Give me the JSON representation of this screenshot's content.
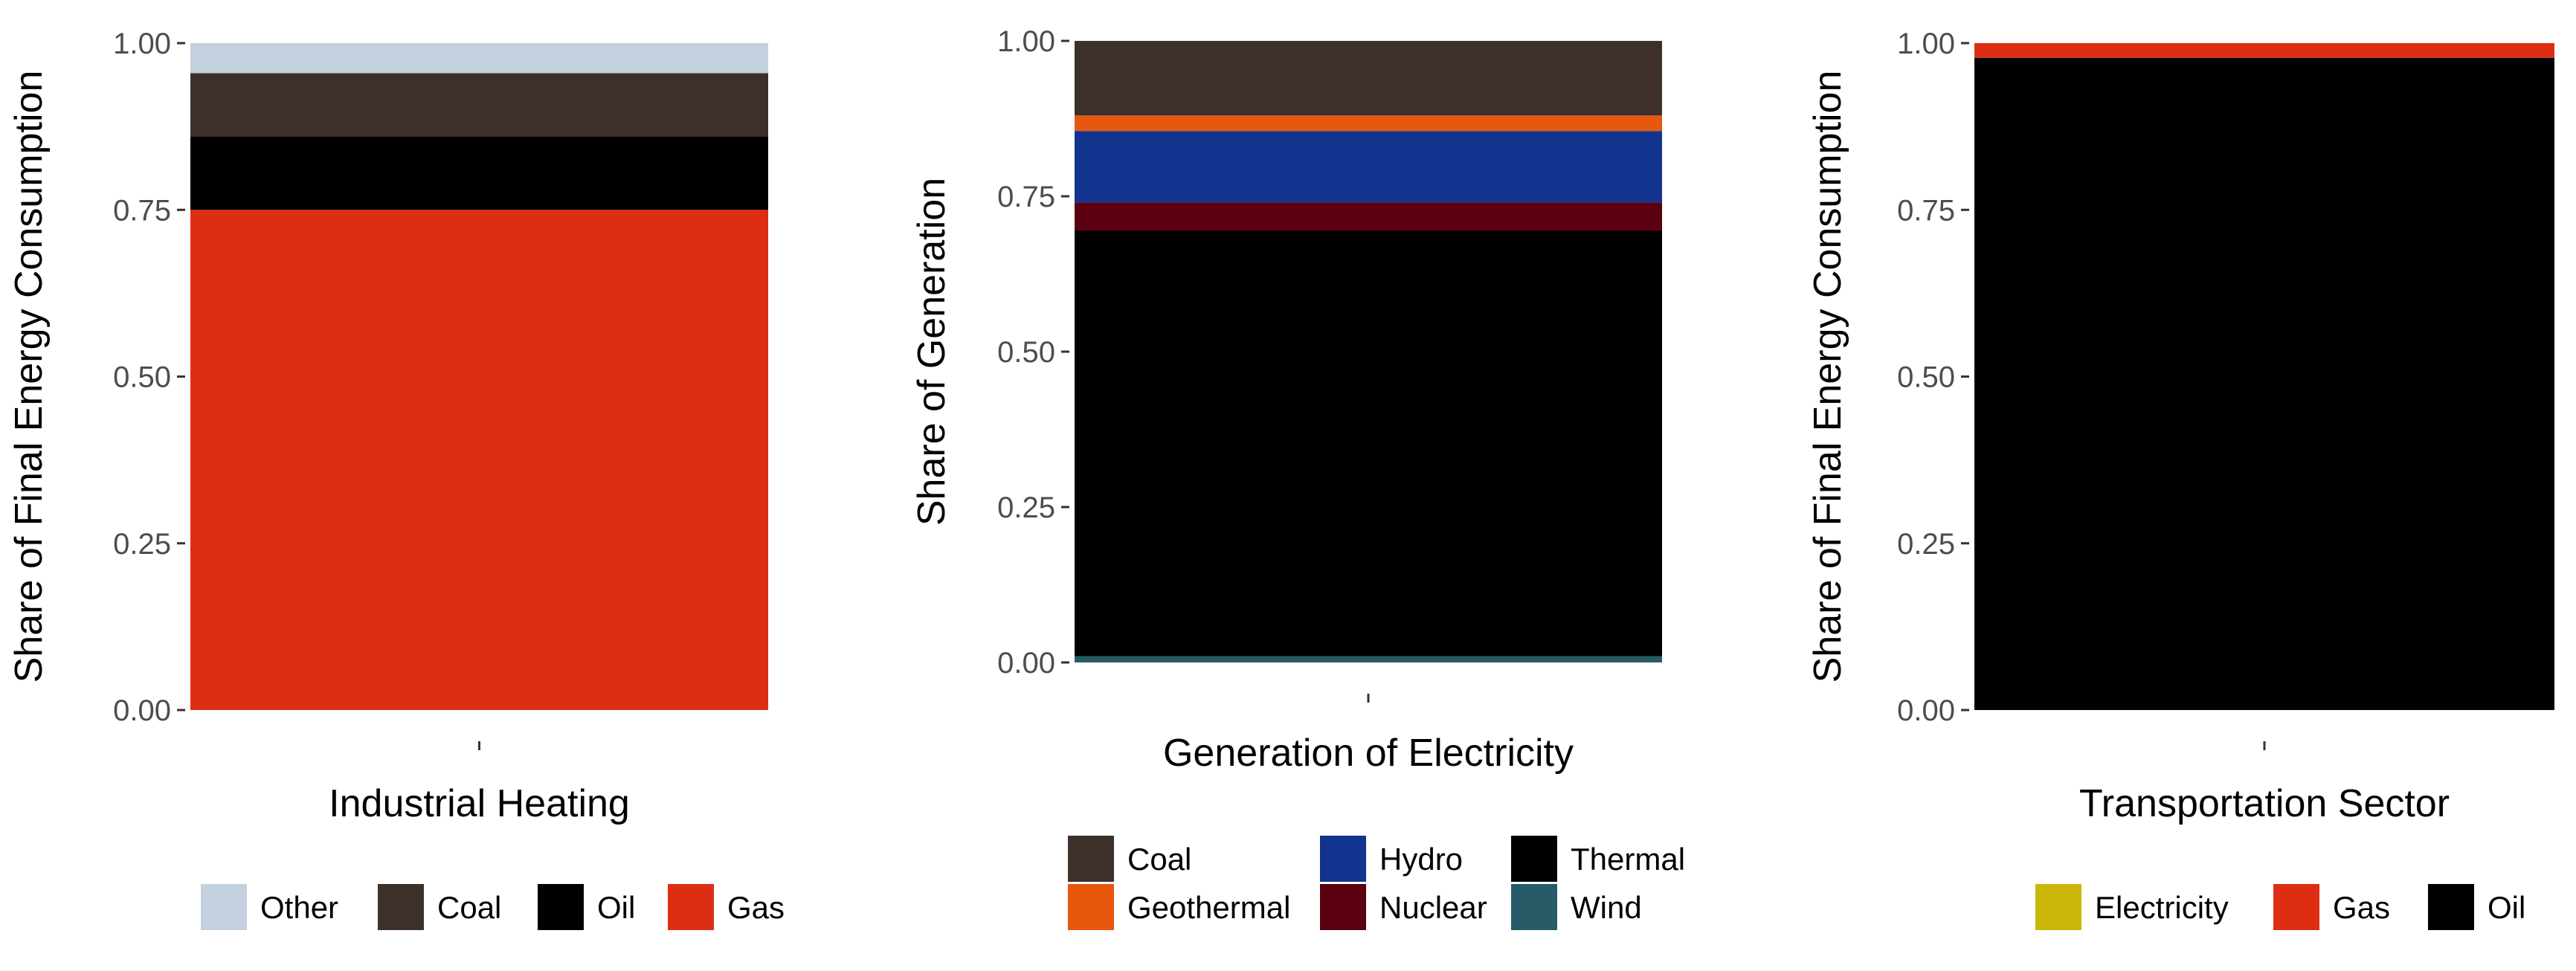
{
  "chart_data": [
    {
      "type": "bar",
      "stacked": true,
      "title": "",
      "xlabel": "Industrial Heating",
      "ylabel": "Share of Final Energy Consumption",
      "ylim": [
        0,
        1
      ],
      "yticks": [
        "0.00",
        "0.25",
        "0.50",
        "0.75",
        "1.00"
      ],
      "categories": [
        ""
      ],
      "series": [
        {
          "name": "Gas",
          "values": [
            0.75
          ],
          "color": "#dd2e14"
        },
        {
          "name": "Oil",
          "values": [
            0.11
          ],
          "color": "#000000"
        },
        {
          "name": "Coal",
          "values": [
            0.095
          ],
          "color": "#3d302b"
        },
        {
          "name": "Other",
          "values": [
            0.045
          ],
          "color": "#c2d1dd"
        }
      ],
      "legend_order": [
        "Other",
        "Coal",
        "Oil",
        "Gas"
      ],
      "legend_position": "bottom"
    },
    {
      "type": "bar",
      "stacked": true,
      "title": "",
      "xlabel": "Generation of Electricity",
      "ylabel": "Share of Generation",
      "ylim": [
        0,
        1
      ],
      "yticks": [
        "0.00",
        "0.25",
        "0.50",
        "0.75",
        "1.00"
      ],
      "categories": [
        ""
      ],
      "series": [
        {
          "name": "Wind",
          "values": [
            0.01
          ],
          "color": "#275b68"
        },
        {
          "name": "Thermal",
          "values": [
            0.685
          ],
          "color": "#000000"
        },
        {
          "name": "Nuclear",
          "values": [
            0.045
          ],
          "color": "#5b0010"
        },
        {
          "name": "Hydro",
          "values": [
            0.115
          ],
          "color": "#12348f"
        },
        {
          "name": "Geothermal",
          "values": [
            0.025
          ],
          "color": "#e8570e"
        },
        {
          "name": "Coal",
          "values": [
            0.12
          ],
          "color": "#3d302b"
        }
      ],
      "legend_order": [
        "Coal",
        "Geothermal",
        "Hydro",
        "Nuclear",
        "Thermal",
        "Wind"
      ],
      "legend_position": "bottom"
    },
    {
      "type": "bar",
      "stacked": true,
      "title": "",
      "xlabel": "Transportation Sector",
      "ylabel": "Share of Final Energy Consumption",
      "ylim": [
        0,
        1
      ],
      "yticks": [
        "0.00",
        "0.25",
        "0.50",
        "0.75",
        "1.00"
      ],
      "categories": [
        ""
      ],
      "series": [
        {
          "name": "Oil",
          "values": [
            0.978
          ],
          "color": "#000000"
        },
        {
          "name": "Gas",
          "values": [
            0.022
          ],
          "color": "#dd2e14"
        },
        {
          "name": "Electricity",
          "values": [
            0.0
          ],
          "color": "#cbb709"
        }
      ],
      "legend_order": [
        "Electricity",
        "Gas",
        "Oil"
      ],
      "legend_position": "bottom"
    }
  ]
}
